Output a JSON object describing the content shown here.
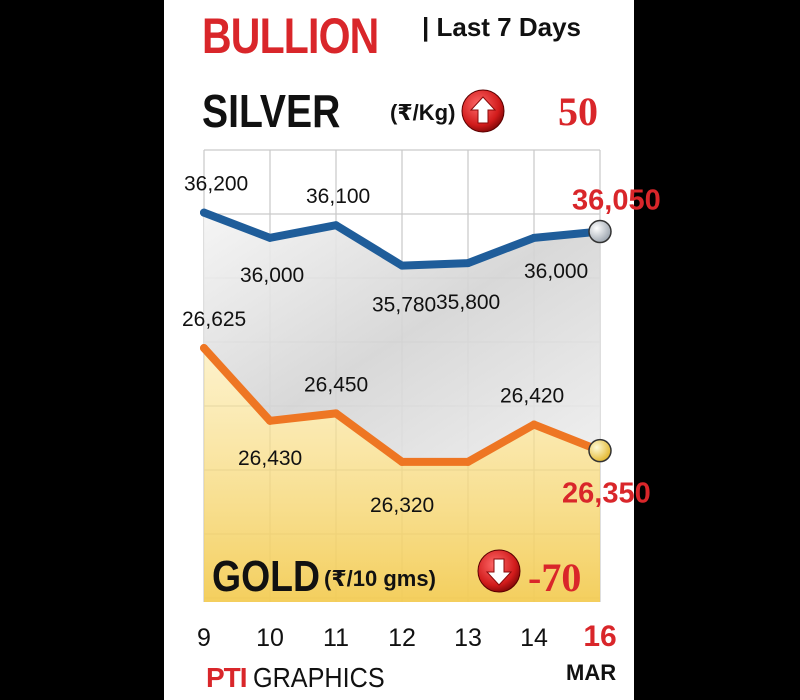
{
  "header": {
    "title": "BULLION",
    "subtitle": "| Last 7 Days"
  },
  "silver": {
    "name": "SILVER",
    "unit": "(₹/Kg)",
    "change": "50",
    "change_direction": "up"
  },
  "gold": {
    "name": "GOLD",
    "unit": "(₹/10 gms)",
    "change": "-70",
    "change_direction": "down"
  },
  "month_label": "MAR",
  "credit": {
    "logo_text": "PTI",
    "text": "GRAPHICS"
  },
  "colors": {
    "title_red": "#d9262a",
    "silver_line": "#1f5d9a",
    "gold_line": "#ee7623",
    "gold_fill": "#f6d872"
  },
  "chart_data": [
    {
      "type": "line",
      "title": "SILVER (₹/Kg)",
      "x": [
        "9",
        "10",
        "11",
        "12",
        "13",
        "14",
        "16"
      ],
      "values": [
        36200,
        36000,
        36100,
        35780,
        35800,
        36000,
        36050
      ],
      "value_labels": [
        "36,200",
        "36,000",
        "36,100",
        "35,780",
        "35,800",
        "36,000",
        "36,050"
      ],
      "ylim": [
        35650,
        36300
      ]
    },
    {
      "type": "area",
      "title": "GOLD (₹/10 gms)",
      "x": [
        "9",
        "10",
        "11",
        "12",
        "13",
        "14",
        "16"
      ],
      "values": [
        26625,
        26430,
        26450,
        26320,
        26320,
        26420,
        26350
      ],
      "value_labels": [
        "26,625",
        "26,430",
        "26,450",
        "26,320",
        "",
        "26,420",
        "26,350"
      ],
      "ylim": [
        26250,
        26660
      ]
    }
  ]
}
